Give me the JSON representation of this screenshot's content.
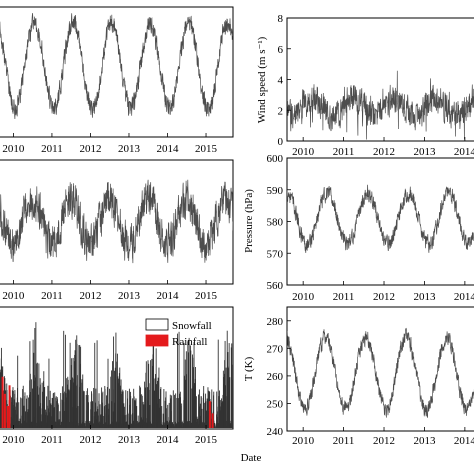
{
  "figure": {
    "xlabel": "Date"
  },
  "chart_data": [
    {
      "id": "left-top",
      "type": "line",
      "xlabel": "",
      "ylabel": "",
      "xlim": [
        2009.6,
        2015.7
      ],
      "x_ticks": [
        "2010",
        "2011",
        "2012",
        "2013",
        "2014",
        "2015"
      ],
      "y_ticks": [],
      "pattern": {
        "mean_position": 0.45,
        "amplitude": 0.33,
        "noise": 0.2,
        "cycle_years": 1.0,
        "phase_peak": 0.55
      },
      "series": [
        {
          "values_note": ""
        }
      ]
    },
    {
      "id": "left-middle",
      "type": "line",
      "xlabel": "",
      "ylabel": "",
      "xlim": [
        2009.6,
        2015.7
      ],
      "x_ticks": [
        "2010",
        "2011",
        "2012",
        "2013",
        "2014",
        "2015"
      ],
      "y_ticks": [],
      "pattern": {
        "mean_position": 0.5,
        "amplitude": 0.18,
        "noise": 0.42,
        "cycle_years": 1.0,
        "phase_peak": 0.5
      }
    },
    {
      "id": "left-bottom",
      "type": "bar",
      "xlabel": "",
      "ylabel": "",
      "xlim": [
        2009.6,
        2015.7
      ],
      "x_ticks": [
        "2010",
        "2011",
        "2012",
        "2013",
        "2014",
        "2015"
      ],
      "y_ticks": [],
      "legend": {
        "position": "top-right",
        "entries": [
          {
            "label": "Snowfall",
            "color": "#ffffff"
          },
          {
            "label": "Rainfall",
            "color": "#e41a1c"
          }
        ]
      },
      "series_colors": {
        "snowfall": "#333333",
        "rainfall": "#e41a1c"
      }
    },
    {
      "id": "wind-speed",
      "type": "line",
      "xlabel": "",
      "ylabel": "Wind speed (m s⁻¹)",
      "xlim": [
        2009.6,
        2014.3
      ],
      "ylim": [
        0,
        8
      ],
      "x_ticks": [
        "2010",
        "2011",
        "2012",
        "2013",
        "2014"
      ],
      "y_ticks": [
        "0",
        "2",
        "4",
        "6",
        "8"
      ],
      "pattern": {
        "mean": 2.2,
        "amplitude": 0.6,
        "noise": 1.3,
        "cycle_years": 1.0,
        "phase_peak": 0.25
      }
    },
    {
      "id": "pressure",
      "type": "line",
      "xlabel": "",
      "ylabel": "Pressure (hPa)",
      "xlim": [
        2009.6,
        2014.3
      ],
      "ylim": [
        560,
        600
      ],
      "x_ticks": [
        "2010",
        "2011",
        "2012",
        "2013",
        "2014"
      ],
      "y_ticks": [
        "560",
        "570",
        "580",
        "590",
        "600"
      ],
      "pattern": {
        "mean": 581,
        "amplitude": 8,
        "noise": 3.5,
        "cycle_years": 1.0,
        "phase_peak": 0.6
      }
    },
    {
      "id": "temperature",
      "type": "line",
      "xlabel": "",
      "ylabel": "T (K)",
      "xlim": [
        2009.6,
        2014.3
      ],
      "ylim": [
        240,
        285
      ],
      "x_ticks": [
        "2010",
        "2011",
        "2012",
        "2013",
        "2014"
      ],
      "y_ticks": [
        "240",
        "250",
        "260",
        "270",
        "280"
      ],
      "pattern": {
        "mean": 261,
        "amplitude": 13,
        "noise": 4,
        "cycle_years": 1.0,
        "phase_peak": 0.55
      }
    }
  ]
}
